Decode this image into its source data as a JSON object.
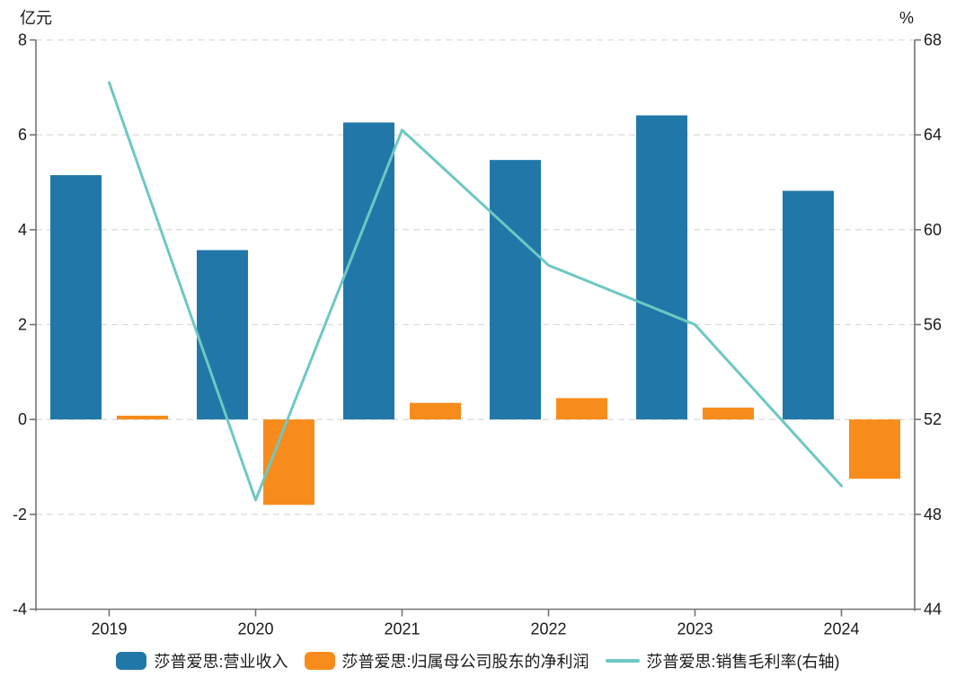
{
  "chart_data": {
    "type": "bar",
    "subtype": "grouped-bars-with-line",
    "title": "",
    "categories": [
      "2019",
      "2020",
      "2021",
      "2022",
      "2023",
      "2024"
    ],
    "series": [
      {
        "name": "莎普爱思:营业收入",
        "type": "bar",
        "axis": "left",
        "color": "#2178A8",
        "values": [
          5.15,
          3.57,
          6.26,
          5.47,
          6.41,
          4.82
        ]
      },
      {
        "name": "莎普爱思:归属母公司股东的净利润",
        "type": "bar",
        "axis": "left",
        "color": "#F78C1C",
        "values": [
          0.08,
          -1.8,
          0.35,
          0.45,
          0.25,
          -1.25
        ]
      },
      {
        "name": "莎普爱思:销售毛利率(右轴)",
        "type": "line",
        "axis": "right",
        "color": "#6EC8C2",
        "values": [
          66.2,
          48.6,
          64.2,
          58.5,
          56.0,
          49.2
        ]
      }
    ],
    "left_axis": {
      "label": "亿元",
      "min": -4,
      "max": 8,
      "ticks": [
        8,
        6,
        4,
        2,
        0,
        -2,
        -4
      ]
    },
    "right_axis": {
      "label": "%",
      "min": 44,
      "max": 68,
      "ticks": [
        68,
        64,
        60,
        56,
        52,
        48,
        44
      ]
    },
    "grid": "horizontal-dashed",
    "legend_position": "bottom-center",
    "style_colors": {
      "gridline": "#DCDCDC",
      "axis_line": "#737373",
      "text": "#1A1A1A"
    }
  }
}
